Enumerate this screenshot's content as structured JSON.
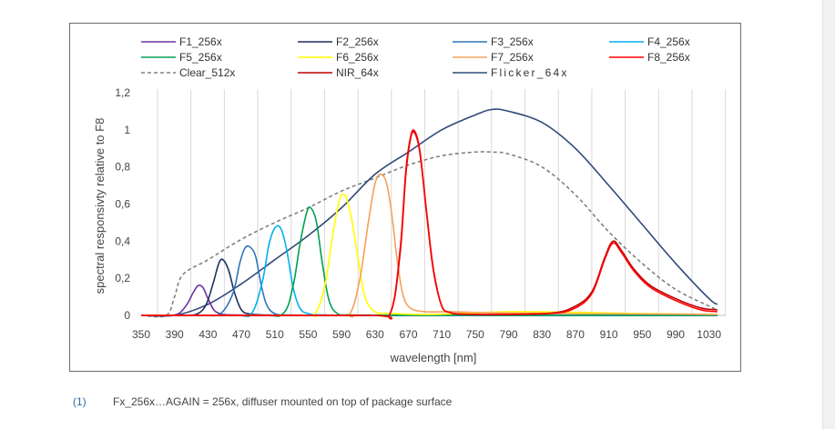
{
  "footnote": {
    "number": "(1)",
    "text": "Fx_256x…AGAIN = 256x, diffuser mounted on top of package surface"
  },
  "chart_data": {
    "type": "line",
    "title": "",
    "xlabel": "wavelength [nm]",
    "ylabel": "spectral responsivty relative to F8",
    "xlim": [
      350,
      1050
    ],
    "ylim": [
      0,
      1.2
    ],
    "x_ticks": [
      "350",
      "390",
      "430",
      "470",
      "510",
      "550",
      "590",
      "630",
      "670",
      "710",
      "750",
      "790",
      "830",
      "870",
      "910",
      "950",
      "990",
      "1030"
    ],
    "y_ticks": [
      "0",
      "0,2",
      "0,4",
      "0,6",
      "0,8",
      "1",
      "1,2"
    ],
    "grid": "vertical",
    "legend_position": "top",
    "series": [
      {
        "name": "F1_256x",
        "color": "#7030a0",
        "style": "solid",
        "x": [
          350,
          380,
          395,
          405,
          412,
          418,
          424,
          430,
          437,
          444,
          450,
          470,
          500,
          550,
          650,
          800,
          1040
        ],
        "y": [
          0,
          0,
          0.01,
          0.06,
          0.12,
          0.16,
          0.15,
          0.09,
          0.03,
          0.01,
          0.004,
          0.002,
          0.001,
          0.001,
          0,
          0,
          0
        ]
      },
      {
        "name": "F2_256x",
        "color": "#1f2f5f",
        "style": "solid",
        "x": [
          350,
          400,
          418,
          428,
          436,
          443,
          448,
          455,
          462,
          470,
          480,
          500,
          550,
          700,
          1040
        ],
        "y": [
          0,
          0,
          0.01,
          0.06,
          0.17,
          0.28,
          0.3,
          0.24,
          0.12,
          0.03,
          0.008,
          0.002,
          0.001,
          0,
          0
        ]
      },
      {
        "name": "F3_256x",
        "color": "#2e75b6",
        "style": "solid",
        "x": [
          350,
          420,
          445,
          460,
          468,
          474,
          480,
          487,
          493,
          500,
          510,
          530,
          600,
          800,
          1040
        ],
        "y": [
          0,
          0,
          0.01,
          0.12,
          0.28,
          0.36,
          0.37,
          0.32,
          0.18,
          0.06,
          0.01,
          0.002,
          0.001,
          0,
          0
        ]
      },
      {
        "name": "F4_256x",
        "color": "#00b0f0",
        "style": "solid",
        "x": [
          350,
          460,
          482,
          495,
          503,
          510,
          517,
          524,
          532,
          540,
          550,
          570,
          650,
          1040
        ],
        "y": [
          0,
          0,
          0.01,
          0.18,
          0.38,
          0.47,
          0.47,
          0.36,
          0.15,
          0.04,
          0.01,
          0.002,
          0.001,
          0
        ]
      },
      {
        "name": "F5_256x",
        "color": "#00a050",
        "style": "solid",
        "x": [
          350,
          490,
          520,
          532,
          540,
          548,
          553,
          560,
          567,
          575,
          585,
          600,
          650,
          1040
        ],
        "y": [
          0,
          0,
          0.01,
          0.16,
          0.38,
          0.55,
          0.58,
          0.5,
          0.28,
          0.08,
          0.01,
          0.003,
          0.001,
          0
        ]
      },
      {
        "name": "F6_256x",
        "color": "#ffff00",
        "style": "solid",
        "x": [
          350,
          540,
          558,
          570,
          580,
          588,
          595,
          602,
          610,
          618,
          630,
          650,
          700,
          800,
          950,
          1040
        ],
        "y": [
          0,
          0,
          0.01,
          0.16,
          0.45,
          0.63,
          0.64,
          0.52,
          0.3,
          0.1,
          0.02,
          0.01,
          0.005,
          0.02,
          0.01,
          0.005
        ]
      },
      {
        "name": "F7_256x",
        "color": "#f4a15d",
        "style": "solid",
        "x": [
          350,
          580,
          600,
          612,
          622,
          630,
          637,
          644,
          650,
          656,
          663,
          672,
          690,
          720,
          760,
          850,
          1040
        ],
        "y": [
          0,
          0,
          0.01,
          0.2,
          0.5,
          0.71,
          0.76,
          0.71,
          0.55,
          0.32,
          0.12,
          0.04,
          0.02,
          0.02,
          0.015,
          0.01,
          0.005
        ]
      },
      {
        "name": "F8_256x",
        "color": "#ff0000",
        "style": "solid",
        "x": [
          350,
          620,
          648,
          660,
          667,
          673,
          678,
          684,
          692,
          700,
          710,
          720,
          730,
          760,
          840,
          870,
          890,
          905,
          915,
          925,
          940,
          960,
          990,
          1020,
          1040
        ],
        "y": [
          0,
          0,
          0.01,
          0.35,
          0.78,
          0.97,
          0.99,
          0.88,
          0.55,
          0.25,
          0.05,
          0.015,
          0.008,
          0.005,
          0.01,
          0.04,
          0.12,
          0.3,
          0.39,
          0.34,
          0.24,
          0.15,
          0.08,
          0.03,
          0.02
        ]
      },
      {
        "name": "Clear_512x",
        "color": "#808080",
        "style": "dashed",
        "x": [
          350,
          380,
          390,
          400,
          430,
          470,
          510,
          550,
          590,
          630,
          670,
          710,
          750,
          770,
          790,
          830,
          870,
          910,
          950,
          990,
          1030,
          1040
        ],
        "y": [
          0,
          0,
          0.1,
          0.22,
          0.3,
          0.41,
          0.5,
          0.58,
          0.67,
          0.74,
          0.81,
          0.86,
          0.88,
          0.88,
          0.87,
          0.8,
          0.65,
          0.45,
          0.28,
          0.14,
          0.05,
          0.03
        ]
      },
      {
        "name": "NIR_64x",
        "color": "#c00000",
        "style": "solid",
        "x": [
          350,
          620,
          648,
          660,
          667,
          673,
          678,
          684,
          692,
          700,
          710,
          720,
          730,
          760,
          840,
          870,
          890,
          905,
          915,
          925,
          940,
          960,
          990,
          1020,
          1040
        ],
        "y": [
          0,
          0,
          0.01,
          0.33,
          0.76,
          0.96,
          0.98,
          0.87,
          0.54,
          0.24,
          0.05,
          0.015,
          0.008,
          0.005,
          0.012,
          0.05,
          0.13,
          0.31,
          0.4,
          0.35,
          0.25,
          0.16,
          0.09,
          0.04,
          0.03
        ]
      },
      {
        "name": "Flicker_64x",
        "color": "#2f4a7a",
        "style": "solid",
        "x": [
          350,
          390,
          430,
          470,
          510,
          550,
          590,
          630,
          670,
          710,
          750,
          770,
          790,
          830,
          870,
          910,
          950,
          990,
          1030,
          1040
        ],
        "y": [
          0,
          0,
          0.06,
          0.17,
          0.3,
          0.43,
          0.58,
          0.76,
          0.88,
          1.0,
          1.08,
          1.11,
          1.1,
          1.04,
          0.9,
          0.7,
          0.49,
          0.28,
          0.09,
          0.06
        ]
      }
    ]
  }
}
